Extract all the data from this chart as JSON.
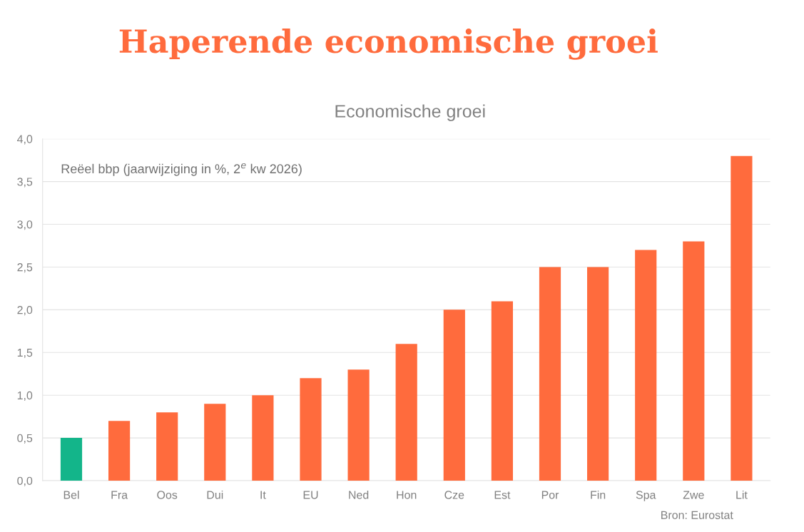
{
  "chart_data": {
    "type": "bar",
    "title": "Haperende economische groei",
    "subtitle": "Economische groei",
    "categories": [
      "Bel",
      "Fra",
      "Oos",
      "Dui",
      "It",
      "EU",
      "Ned",
      "Hon",
      "Cze",
      "Est",
      "Por",
      "Fin",
      "Spa",
      "Zwe",
      "Lit"
    ],
    "values": [
      0.5,
      0.7,
      0.8,
      0.9,
      1.0,
      1.2,
      1.3,
      1.6,
      2.0,
      2.1,
      2.5,
      2.5,
      2.7,
      2.8,
      3.8
    ],
    "colors": [
      "#13b58a",
      "#ff6b3d",
      "#ff6b3d",
      "#ff6b3d",
      "#ff6b3d",
      "#ff6b3d",
      "#ff6b3d",
      "#ff6b3d",
      "#ff6b3d",
      "#ff6b3d",
      "#ff6b3d",
      "#ff6b3d",
      "#ff6b3d",
      "#ff6b3d",
      "#ff6b3d"
    ],
    "ylim": [
      0,
      4
    ],
    "yticks": [
      {
        "value": 0,
        "label": "0,0"
      },
      {
        "value": 0.5,
        "label": "0,5"
      },
      {
        "value": 1,
        "label": "1,0"
      },
      {
        "value": 1.5,
        "label": "1,5"
      },
      {
        "value": 2,
        "label": "2,0"
      },
      {
        "value": 2.5,
        "label": "2,5"
      },
      {
        "value": 3,
        "label": "3,0"
      },
      {
        "value": 3.5,
        "label": "3,5"
      },
      {
        "value": 4,
        "label": "4,0"
      }
    ],
    "grid": "y",
    "annotations": [
      "Reëel bbp (jaarwijziging in %, 2$^{e}$ kw 2026)",
      "Bron: Eurostat"
    ]
  }
}
